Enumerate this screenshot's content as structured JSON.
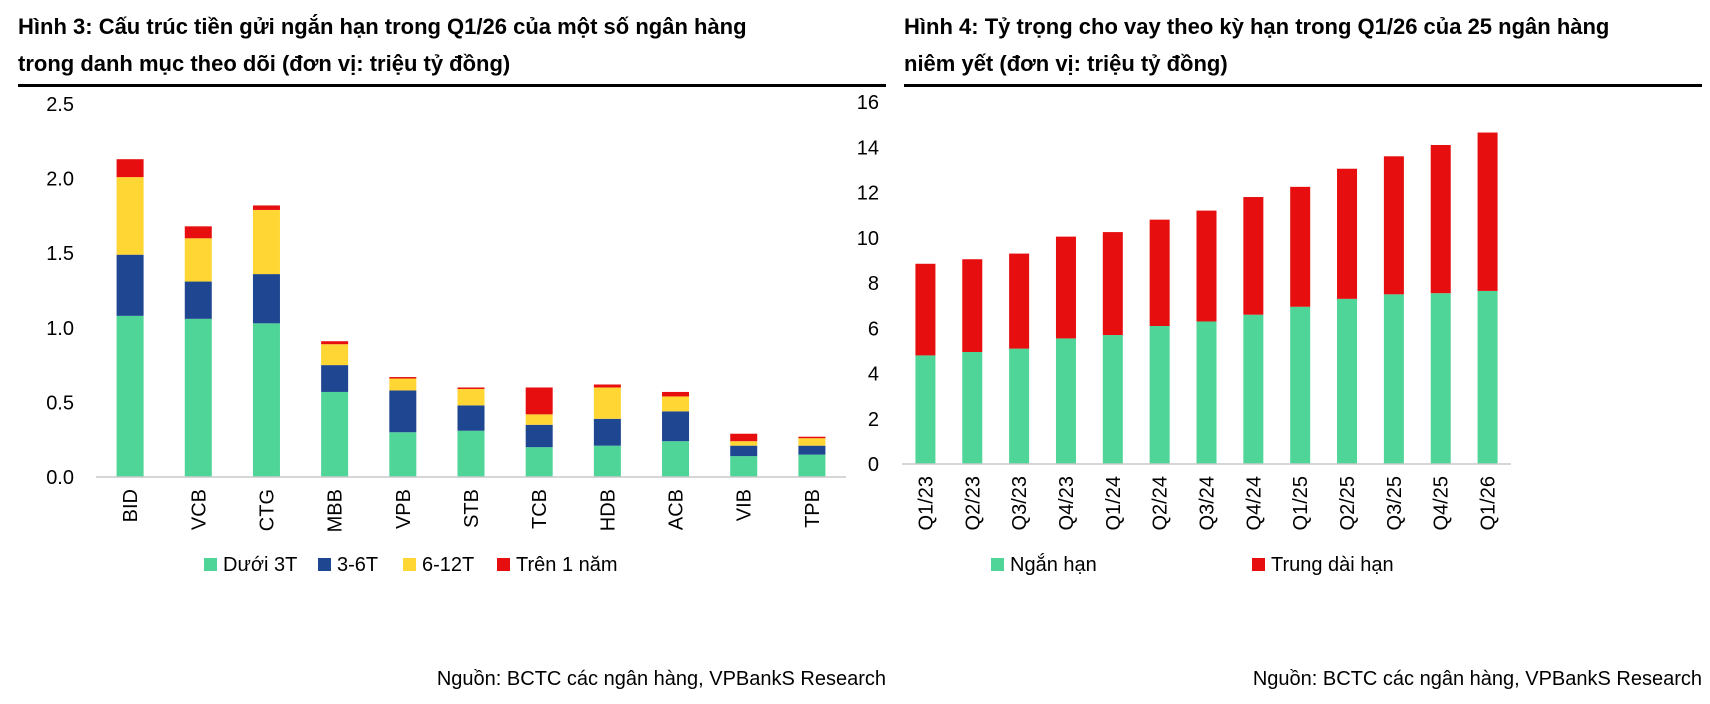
{
  "figure3": {
    "label": "Hình 3:",
    "title_line1": "Cấu trúc tiền gửi ngắn hạn trong Q1/26 của một số ngân hàng",
    "title_line2": "trong danh mục theo dõi (đơn vị: triệu tỷ đồng)",
    "source": "Nguồn: BCTC các ngân hàng, VPBankS Research",
    "chart_data": {
      "type": "bar",
      "stacked": true,
      "categories": [
        "BID",
        "VCB",
        "CTG",
        "MBB",
        "VPB",
        "STB",
        "TCB",
        "HDB",
        "ACB",
        "VIB",
        "TPB"
      ],
      "ylim": [
        0,
        2.5
      ],
      "yticks": [
        "0.0",
        "0.5",
        "1.0",
        "1.5",
        "2.0",
        "2.5"
      ],
      "legend_position": "bottom",
      "series": [
        {
          "name": "Dưới 3T",
          "color": "#4ed597",
          "values": [
            1.08,
            1.06,
            1.03,
            0.57,
            0.3,
            0.31,
            0.2,
            0.21,
            0.24,
            0.14,
            0.15
          ]
        },
        {
          "name": "3-6T",
          "color": "#1f4690",
          "values": [
            0.41,
            0.25,
            0.33,
            0.18,
            0.28,
            0.17,
            0.15,
            0.18,
            0.2,
            0.07,
            0.06
          ]
        },
        {
          "name": "6-12T",
          "color": "#ffd633",
          "values": [
            0.52,
            0.29,
            0.43,
            0.14,
            0.08,
            0.11,
            0.07,
            0.21,
            0.1,
            0.03,
            0.05
          ]
        },
        {
          "name": "Trên 1 năm",
          "color": "#e60e0e",
          "values": [
            0.12,
            0.08,
            0.03,
            0.02,
            0.01,
            0.01,
            0.18,
            0.02,
            0.03,
            0.05,
            0.01
          ]
        }
      ]
    }
  },
  "figure4": {
    "label": "Hình 4:",
    "title_line1": "Tỷ trọng cho vay theo kỳ hạn trong Q1/26 của 25 ngân hàng",
    "title_line2": "niêm yết (đơn vị: triệu tỷ đồng)",
    "source": "Nguồn: BCTC các ngân hàng, VPBankS Research",
    "chart_data": {
      "type": "bar",
      "stacked": true,
      "categories": [
        "Q1/23",
        "Q2/23",
        "Q3/23",
        "Q4/23",
        "Q1/24",
        "Q2/24",
        "Q3/24",
        "Q4/24",
        "Q1/25",
        "Q2/25",
        "Q3/25",
        "Q4/25",
        "Q1/26"
      ],
      "ylim": [
        0,
        16
      ],
      "yticks": [
        "0",
        "2",
        "4",
        "6",
        "8",
        "10",
        "12",
        "14",
        "16"
      ],
      "legend_position": "bottom",
      "series": [
        {
          "name": "Ngắn hạn",
          "color": "#4ed597",
          "values": [
            4.8,
            4.95,
            5.1,
            5.55,
            5.7,
            6.1,
            6.3,
            6.6,
            6.95,
            7.3,
            7.5,
            7.55,
            7.65
          ]
        },
        {
          "name": "Trung dài hạn",
          "color": "#e60e0e",
          "values": [
            4.05,
            4.1,
            4.2,
            4.5,
            4.55,
            4.7,
            4.9,
            5.2,
            5.3,
            5.75,
            6.1,
            6.55,
            7.0
          ]
        }
      ]
    }
  }
}
